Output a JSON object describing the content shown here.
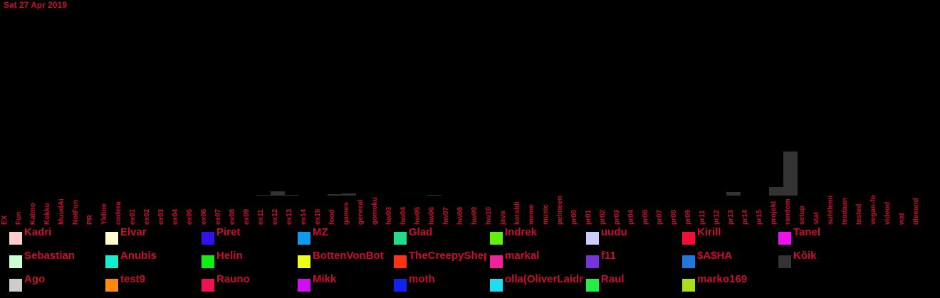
{
  "date": "Sat 27 Apr 2019",
  "chart_data": {
    "type": "bar",
    "stacked": true,
    "categories": [
      "EX",
      "Fun",
      "Kalmo",
      "Kokku",
      "MuudAi",
      "NotFun",
      "PR",
      "Yldine",
      "codera",
      "ex01",
      "ex02",
      "ex03",
      "ex04",
      "ex05",
      "ex06",
      "ex07",
      "ex08",
      "ex09",
      "ex11",
      "ex12",
      "ex13",
      "ex14",
      "ex15",
      "food",
      "games",
      "general",
      "gomoku",
      "hw03",
      "hw04",
      "hw05",
      "hw06",
      "hw07",
      "hw08",
      "hw09",
      "hw10",
      "java",
      "koraldi",
      "meme",
      "music",
      "pelmeen",
      "pr00",
      "pr01",
      "pr02",
      "pr03",
      "pr04",
      "pr06",
      "pr07",
      "pr08",
      "pr09",
      "pr11",
      "pr12",
      "pr13",
      "pr14",
      "pr15",
      "projekt",
      "random",
      "setup",
      "stat",
      "suhtlemine",
      "teadaanne",
      "tested",
      "vegan-food",
      "videod",
      "wat",
      "üleeandmine"
    ],
    "series": [
      {
        "name": "Kõik",
        "color": "#333333",
        "values": [
          0,
          0,
          0,
          0,
          0,
          0,
          0,
          0,
          0,
          0,
          0,
          0,
          0,
          0,
          0,
          0,
          0,
          0,
          1,
          6,
          1,
          0,
          0,
          2,
          3,
          0,
          0,
          0,
          0,
          0,
          1,
          0,
          0,
          0,
          0,
          0,
          0,
          0,
          0,
          0,
          0,
          0,
          0,
          0,
          0,
          0,
          0,
          0,
          0,
          0,
          0,
          5,
          0,
          0,
          12,
          62,
          0,
          0,
          0,
          0,
          0,
          0,
          0,
          0,
          0
        ]
      }
    ],
    "ylim": [
      0,
      80
    ],
    "legend_position": "bottom",
    "legend": [
      {
        "name": "Kadri",
        "color": "#ffcccc"
      },
      {
        "name": "Elvar",
        "color": "#ffffcc"
      },
      {
        "name": "Piret",
        "color": "#3311ee"
      },
      {
        "name": "MZ",
        "color": "#1199ee"
      },
      {
        "name": "Glad",
        "color": "#22dd88"
      },
      {
        "name": "Indrek",
        "color": "#66ee11"
      },
      {
        "name": "uudu",
        "color": "#ccccff"
      },
      {
        "name": "Kirill",
        "color": "#ee1133"
      },
      {
        "name": "Tanel",
        "color": "#ee11ee"
      },
      {
        "name": "Sebastian",
        "color": "#ccffcc"
      },
      {
        "name": "Anubis",
        "color": "#11eecc"
      },
      {
        "name": "Helin",
        "color": "#11ee11"
      },
      {
        "name": "BottenVonBot",
        "color": "#eeff11"
      },
      {
        "name": "TheCreepyShepherd",
        "color": "#ff3311"
      },
      {
        "name": "markal",
        "color": "#ee2299"
      },
      {
        "name": "f11",
        "color": "#7733dd"
      },
      {
        "name": "$A$HA",
        "color": "#2277dd"
      },
      {
        "name": "Kõik",
        "color": "#333333"
      },
      {
        "name": "Ago",
        "color": "#cccccc"
      },
      {
        "name": "test9",
        "color": "#ff8811"
      },
      {
        "name": "Rauno",
        "color": "#ee1155"
      },
      {
        "name": "Mikk",
        "color": "#cc11ee"
      },
      {
        "name": "moth",
        "color": "#1122ee"
      },
      {
        "name": "olla(OliverLaidma)",
        "color": "#22ddee"
      },
      {
        "name": "Raul",
        "color": "#22ee44"
      },
      {
        "name": "marko169",
        "color": "#aadd22"
      }
    ]
  }
}
